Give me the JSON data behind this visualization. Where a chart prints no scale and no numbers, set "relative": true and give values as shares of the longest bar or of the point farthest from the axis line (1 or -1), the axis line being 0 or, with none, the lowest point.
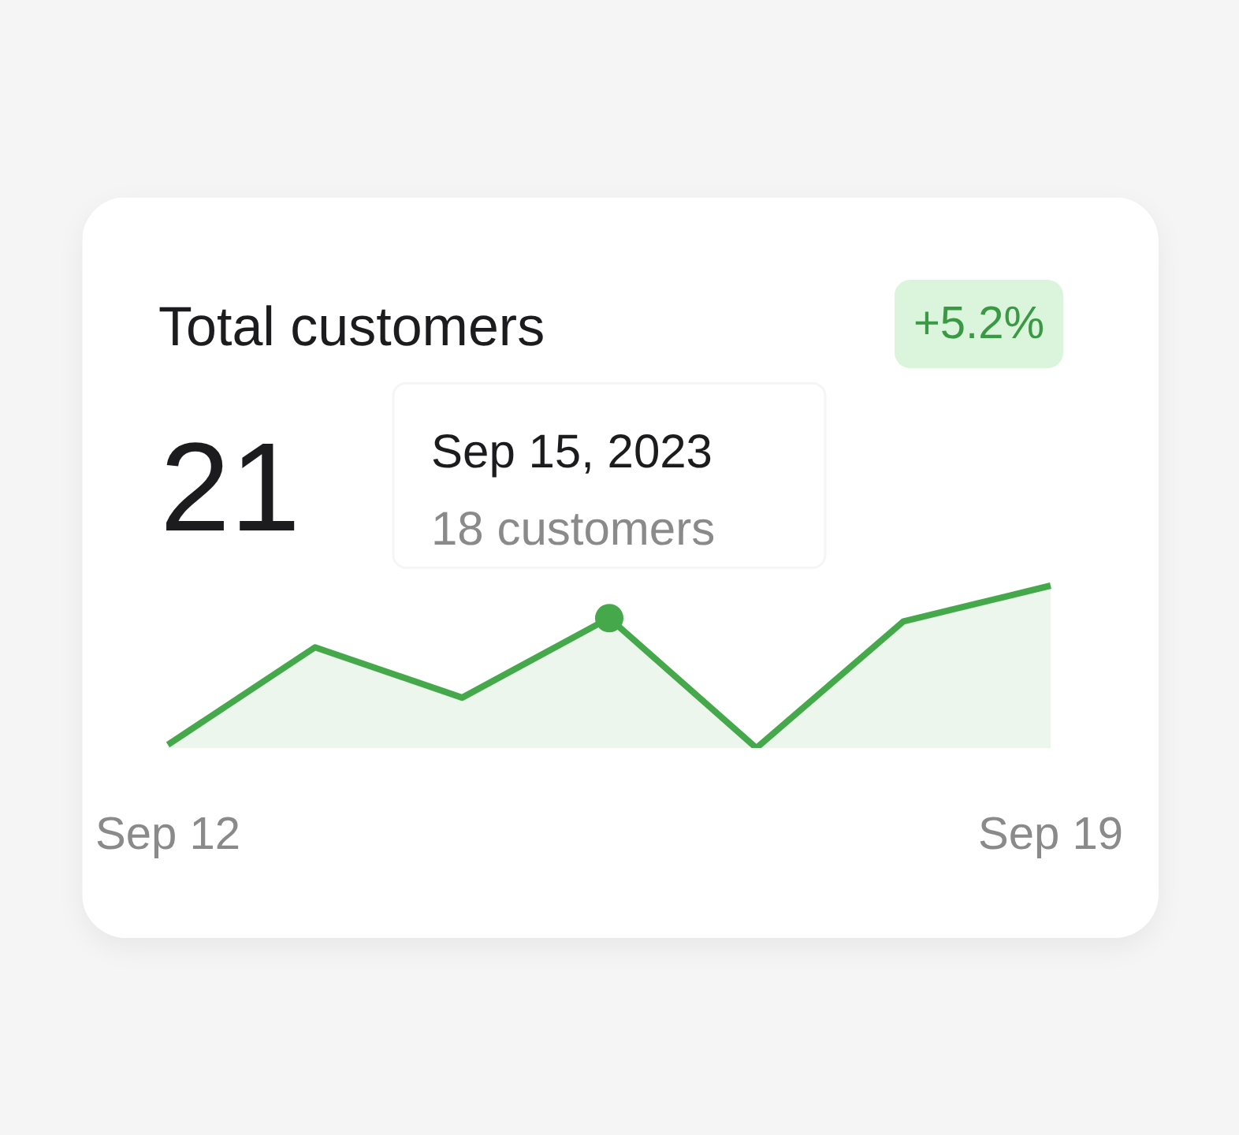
{
  "chart_data": {
    "type": "area",
    "title": "Total customers",
    "subtitle": "21",
    "annotations": [
      "+5.2%",
      "Sep 15, 2023",
      "18 customers"
    ],
    "x": [
      "2023-09-12T00:00",
      "2023-09-13T04:00",
      "2023-09-14T08:00",
      "2023-09-15T12:00",
      "2023-09-16T16:00",
      "2023-09-17T20:00",
      "2023-09-19T00:00"
    ],
    "xlim": [
      "2023-09-11T12:00",
      "2023-09-19T12:00"
    ],
    "xticks": [
      {
        "value": "2023-09-12",
        "label": "Sep 12"
      },
      {
        "value": "2023-09-19",
        "label": "Sep 19"
      }
    ],
    "relative": true,
    "series": [
      {
        "color": "#45a94c",
        "values": [
          0.02,
          0.62,
          0.31,
          0.8,
          0.0,
          0.78,
          1.0
        ]
      },
      {
        "type": "scatter",
        "color": "#45a94c",
        "x": [
          "2023-09-15T12:00"
        ],
        "values": [
          0.8
        ]
      }
    ]
  }
}
